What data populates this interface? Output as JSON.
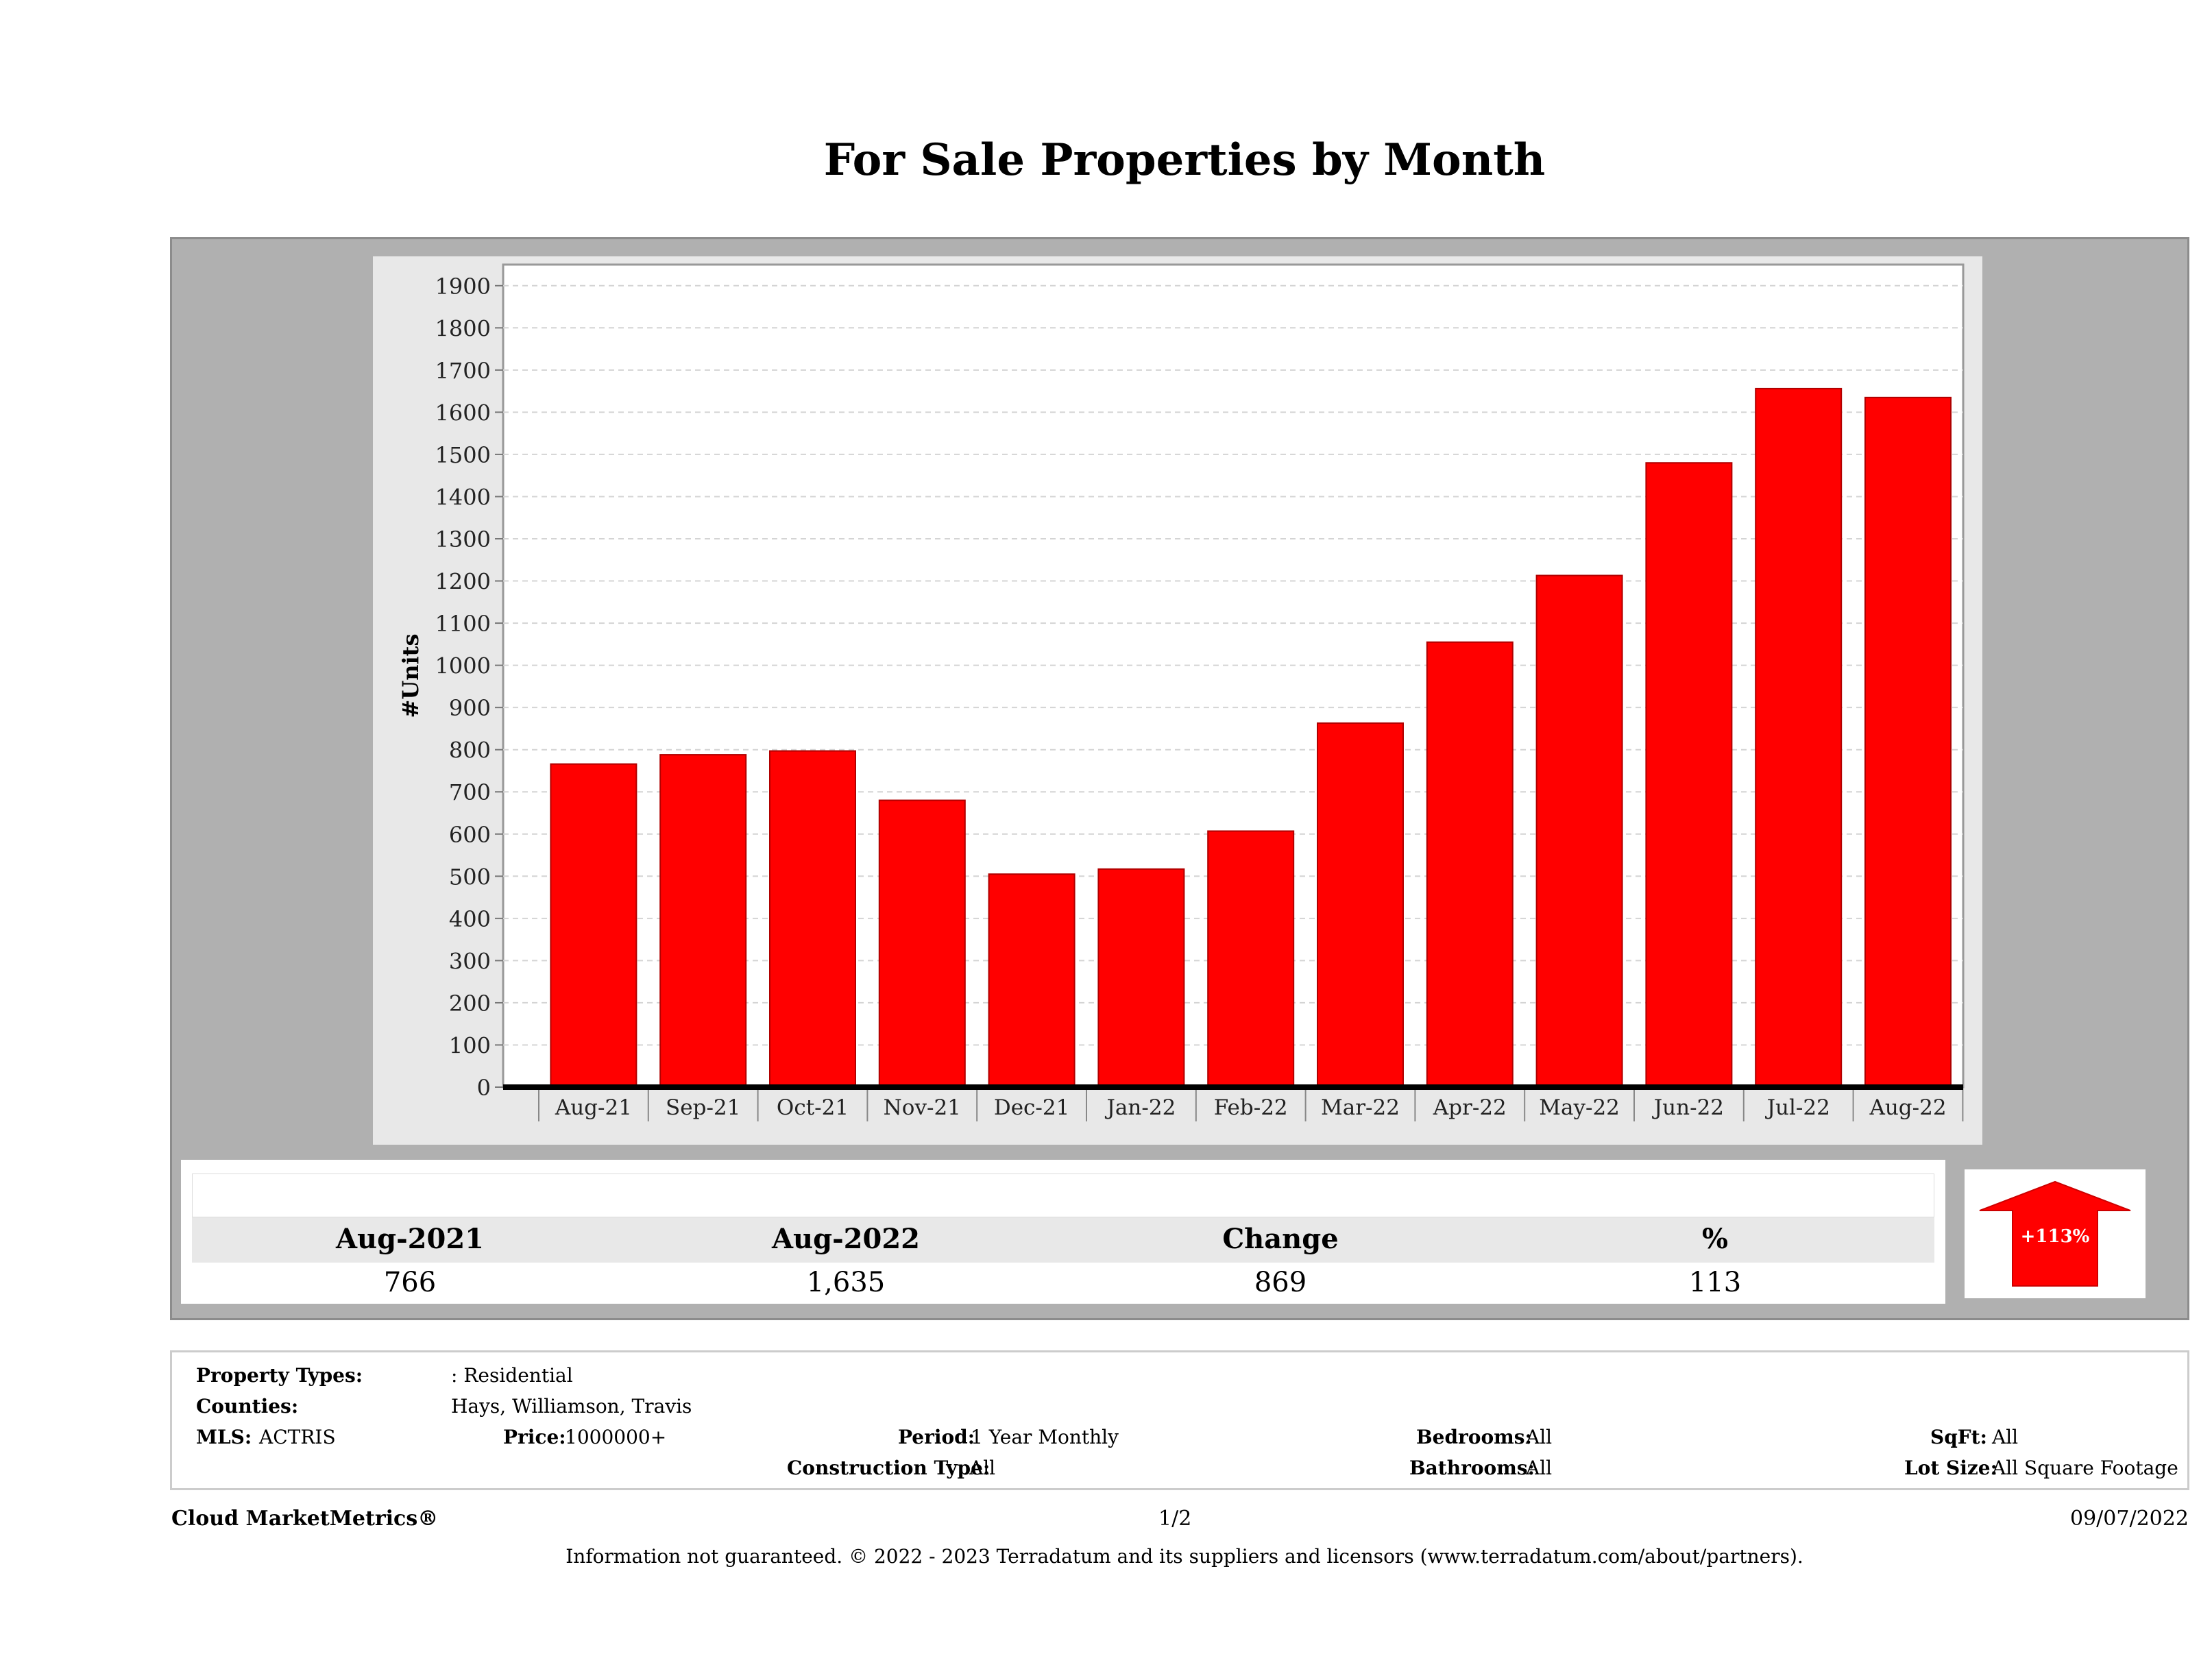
{
  "title": "For Sale Properties by Month",
  "chart_data": {
    "type": "bar",
    "categories": [
      "Aug-21",
      "Sep-21",
      "Oct-21",
      "Nov-21",
      "Dec-21",
      "Jan-22",
      "Feb-22",
      "Mar-22",
      "Apr-22",
      "May-22",
      "Jun-22",
      "Jul-22",
      "Aug-22"
    ],
    "values": [
      766,
      788,
      797,
      680,
      505,
      517,
      607,
      863,
      1055,
      1213,
      1480,
      1656,
      1635
    ],
    "ylabel": "#Units",
    "ylim": [
      0,
      1950
    ],
    "yticks": [
      "0",
      "100",
      "200",
      "300",
      "400",
      "500",
      "600",
      "700",
      "800",
      "900",
      "1000",
      "1100",
      "1200",
      "1300",
      "1400",
      "1500",
      "1600",
      "1700",
      "1800",
      "1900"
    ],
    "bar_color": "#ff0000",
    "grid": true
  },
  "summary": {
    "headers": [
      "Aug-2021",
      "Aug-2022",
      "Change",
      "%"
    ],
    "values": [
      "766",
      "1,635",
      "869",
      "113"
    ],
    "badge": "+113%",
    "badge_color": "#ff0000",
    "badge_icon": "up-arrow-icon"
  },
  "criteria": {
    "property_types_label": "Property Types:",
    "property_types_value": ": Residential",
    "counties_label": "Counties:",
    "counties_value": "Hays, Williamson, Travis",
    "mls_label": "MLS:",
    "mls_value": "ACTRIS",
    "price_label": "Price:",
    "price_value": "1000000+",
    "period_label": "Period:",
    "period_value": "1 Year Monthly",
    "construction_label": "Construction Type:",
    "construction_value": "All",
    "bedrooms_label": "Bedrooms:",
    "bedrooms_value": "All",
    "bathrooms_label": "Bathrooms:",
    "bathrooms_value": "All",
    "sqft_label": "SqFt:",
    "sqft_value": "All",
    "lotsize_label": "Lot Size:",
    "lotsize_value": "All Square Footage"
  },
  "footer": {
    "brand": "Cloud MarketMetrics®",
    "page": "1/2",
    "date": "09/07/2022",
    "disclaimer": "Information not guaranteed. © 2022 - 2023 Terradatum and its suppliers and licensors (www.terradatum.com/about/partners)."
  }
}
